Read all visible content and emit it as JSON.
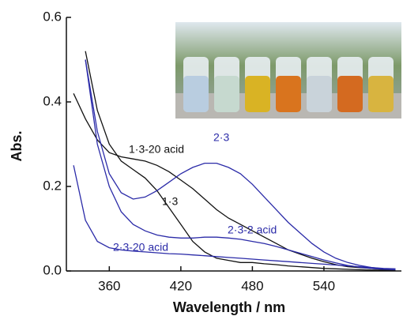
{
  "chart_data": {
    "type": "line",
    "x_label": "Wavelength / nm",
    "y_label": "Abs.",
    "x": [
      330,
      340,
      350,
      360,
      370,
      380,
      390,
      400,
      410,
      420,
      430,
      440,
      450,
      460,
      470,
      480,
      490,
      500,
      510,
      520,
      530,
      540,
      550,
      560,
      570,
      580,
      590,
      600
    ],
    "xlim": [
      324,
      605
    ],
    "ylim": [
      0,
      0.6
    ],
    "xticks": [
      360,
      420,
      480,
      540
    ],
    "yticks": [
      {
        "value": 0,
        "label": "0.0"
      },
      0.2,
      0.4,
      0.6
    ],
    "series": [
      {
        "name": "1·3",
        "color": "#111111",
        "values": [
          null,
          0.52,
          0.38,
          0.3,
          0.26,
          0.24,
          0.22,
          0.19,
          0.15,
          0.11,
          0.07,
          0.045,
          0.03,
          0.025,
          0.02,
          0.02,
          0.017,
          0.015,
          0.012,
          0.01,
          0.008,
          0.006,
          0.005,
          0.004,
          0.003,
          0.002,
          0.002,
          0.001
        ]
      },
      {
        "name": "1·3-20 acid",
        "color": "#111111",
        "values": [
          0.42,
          0.36,
          0.31,
          0.28,
          0.27,
          0.265,
          0.26,
          0.25,
          0.235,
          0.215,
          0.195,
          0.17,
          0.145,
          0.125,
          0.11,
          0.095,
          0.08,
          0.065,
          0.05,
          0.04,
          0.03,
          0.022,
          0.015,
          0.01,
          0.008,
          0.006,
          0.004,
          0.003
        ]
      },
      {
        "name": "2·3",
        "color": "#2b2ba8",
        "values": [
          null,
          0.5,
          0.33,
          0.23,
          0.185,
          0.17,
          0.175,
          0.19,
          0.21,
          0.23,
          0.245,
          0.255,
          0.255,
          0.245,
          0.23,
          0.205,
          0.175,
          0.145,
          0.115,
          0.09,
          0.065,
          0.045,
          0.03,
          0.02,
          0.013,
          0.008,
          0.005,
          0.003
        ]
      },
      {
        "name": "2·3-2 acid",
        "color": "#2b2ba8",
        "values": [
          null,
          0.5,
          0.3,
          0.2,
          0.14,
          0.11,
          0.095,
          0.085,
          0.08,
          0.078,
          0.078,
          0.08,
          0.08,
          0.078,
          0.075,
          0.07,
          0.065,
          0.058,
          0.05,
          0.042,
          0.034,
          0.026,
          0.019,
          0.013,
          0.009,
          0.006,
          0.004,
          0.003
        ]
      },
      {
        "name": "2·3-20 acid",
        "color": "#2b2ba8",
        "values": [
          0.25,
          0.12,
          0.07,
          0.055,
          0.05,
          0.047,
          0.045,
          0.043,
          0.041,
          0.04,
          0.038,
          0.036,
          0.034,
          0.032,
          0.03,
          0.028,
          0.026,
          0.024,
          0.022,
          0.02,
          0.018,
          0.016,
          0.014,
          0.012,
          0.01,
          0.008,
          0.006,
          0.005
        ]
      }
    ]
  }
}
